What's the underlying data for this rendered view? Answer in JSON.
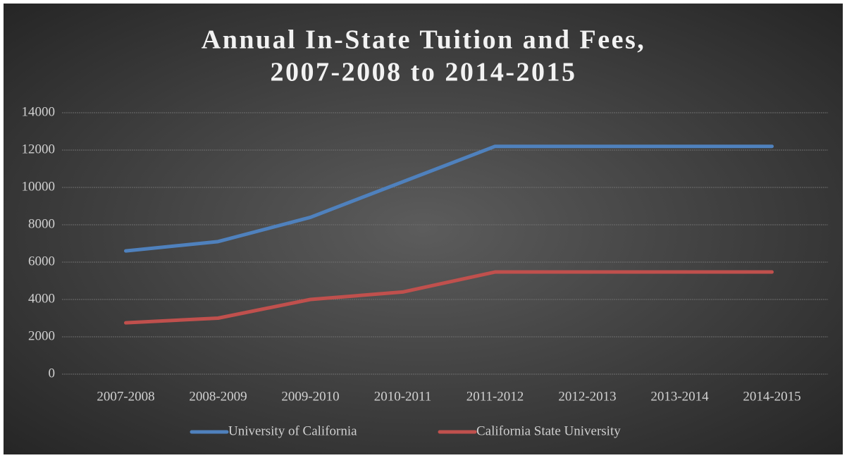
{
  "chart_data": {
    "type": "line",
    "title": [
      "Annual In-State Tuition and Fees,",
      "2007-2008 to 2014-2015"
    ],
    "categories": [
      "2007-2008",
      "2008-2009",
      "2009-2010",
      "2010-2011",
      "2011-2012",
      "2012-2013",
      "2013-2014",
      "2014-2015"
    ],
    "series": [
      {
        "name": "University of California",
        "color": "#4f81bd",
        "values": [
          6600,
          7100,
          8400,
          10300,
          12200,
          12200,
          12200,
          12200
        ]
      },
      {
        "name": "California State University",
        "color": "#c0504d",
        "values": [
          2750,
          3000,
          4000,
          4400,
          5470,
          5470,
          5470,
          5470
        ]
      }
    ],
    "ylim": [
      0,
      14000
    ],
    "yticks": [
      0,
      2000,
      4000,
      6000,
      8000,
      10000,
      12000,
      14000
    ],
    "grid": true,
    "legend": "bottom"
  }
}
